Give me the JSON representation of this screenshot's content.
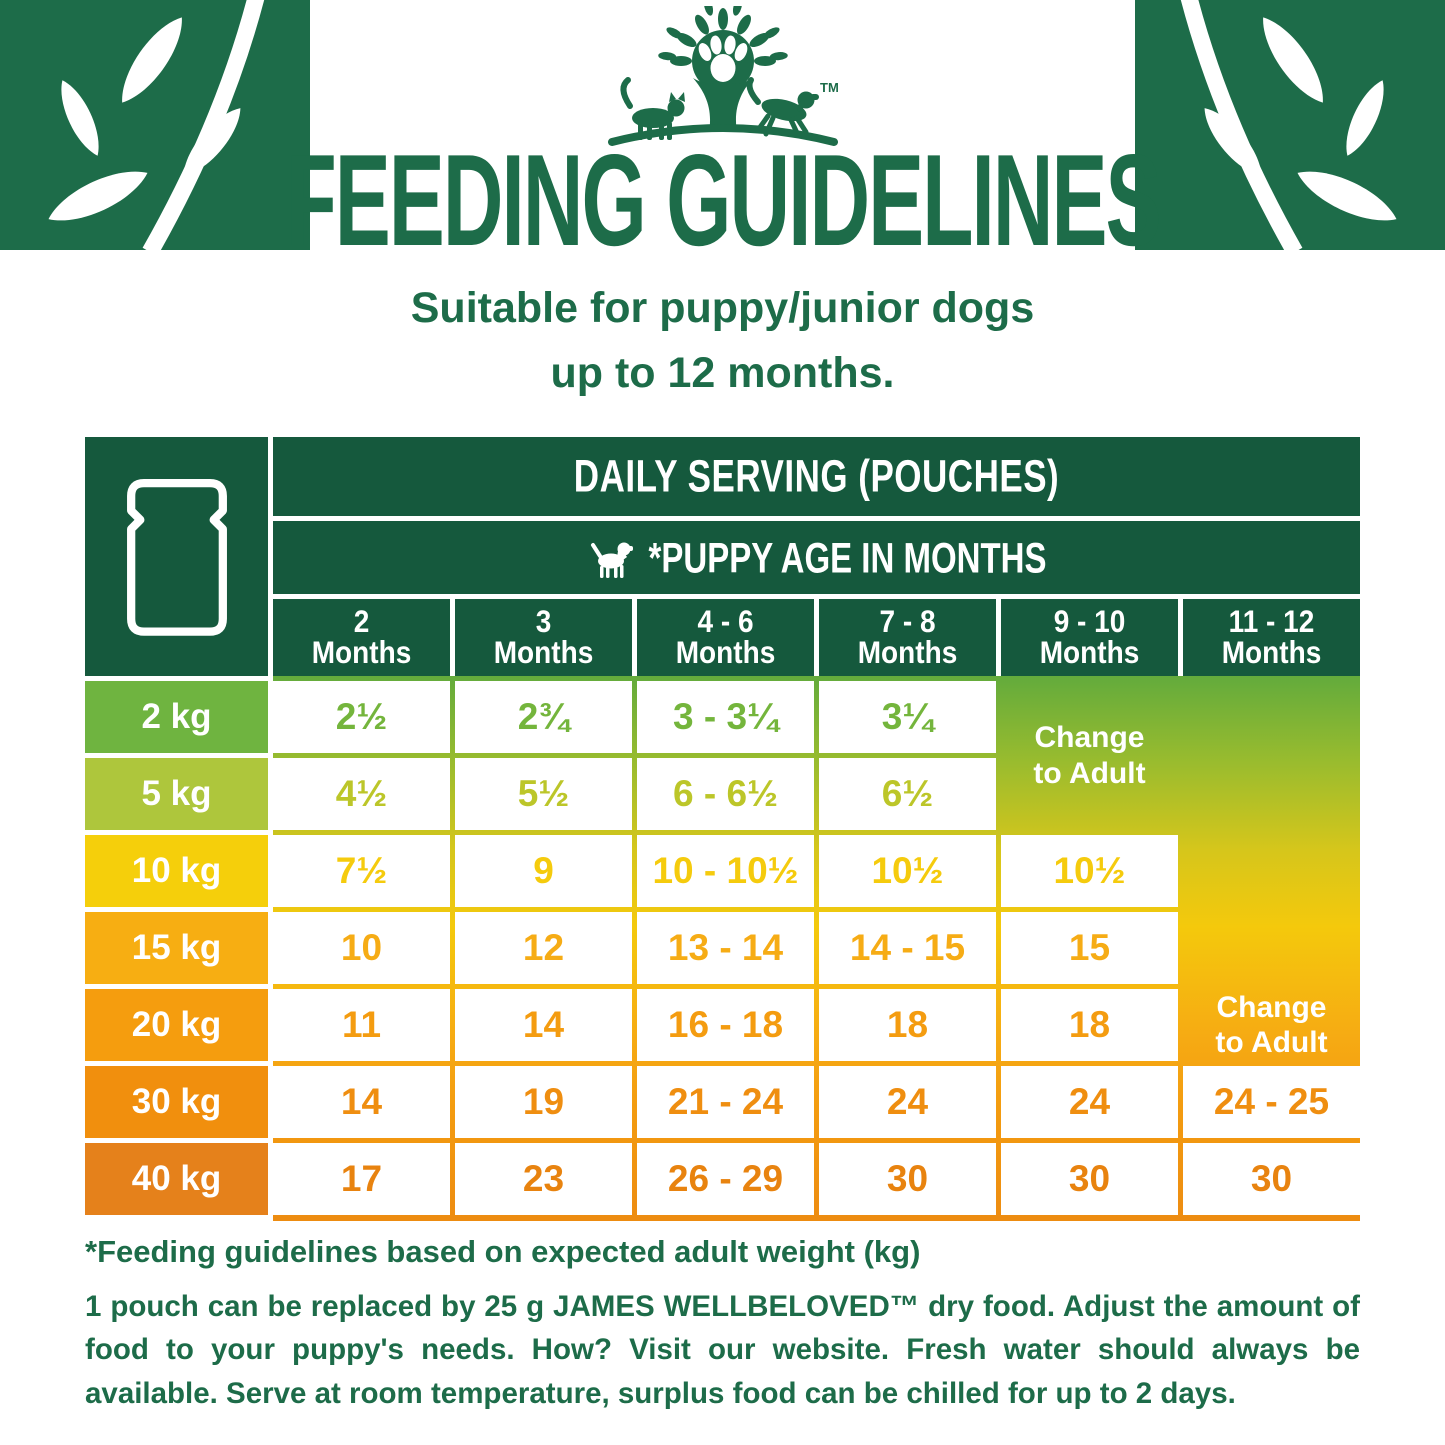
{
  "brand": {
    "trademark": "TM"
  },
  "page": {
    "title": "FEEDING GUIDELINES",
    "subtitle_line1": "Suitable for puppy/junior dogs",
    "subtitle_line2": "up to 12 months.",
    "colors": {
      "brand_green": "#1d6c49",
      "table_header_green": "#15593d",
      "gradient_top": "#63ab3c",
      "gradient_middle": "#f4c90c",
      "gradient_bottom": "#ed8c11"
    }
  },
  "table": {
    "daily_serving_header": "DAILY SERVING (POUCHES)",
    "puppy_age_header": "*PUPPY AGE IN MONTHS",
    "columns": [
      {
        "range": "2",
        "unit": "Months"
      },
      {
        "range": "3",
        "unit": "Months"
      },
      {
        "range": "4 - 6",
        "unit": "Months"
      },
      {
        "range": "7 - 8",
        "unit": "Months"
      },
      {
        "range": "9 - 10",
        "unit": "Months"
      },
      {
        "range": "11 - 12",
        "unit": "Months"
      }
    ],
    "rows": [
      {
        "weight": "2 kg",
        "cell_color": "#6fb440",
        "value_color": "#74b53c",
        "values": [
          "2½",
          "2¾",
          "3 - 3¼",
          "3¼",
          null,
          null
        ]
      },
      {
        "weight": "5 kg",
        "cell_color": "#aec63c",
        "value_color": "#bcc629",
        "values": [
          "4½",
          "5½",
          "6 - 6½",
          "6½",
          null,
          null
        ]
      },
      {
        "weight": "10 kg",
        "cell_color": "#f5cf0b",
        "value_color": "#f5cb0d",
        "values": [
          "7½",
          "9",
          "10 - 10½",
          "10½",
          "10½",
          null
        ]
      },
      {
        "weight": "15 kg",
        "cell_color": "#f7ae12",
        "value_color": "#f6ac15",
        "values": [
          "10",
          "12",
          "13 - 14",
          "14 - 15",
          "15",
          null
        ]
      },
      {
        "weight": "20 kg",
        "cell_color": "#f59d0e",
        "value_color": "#f49c10",
        "values": [
          "11",
          "14",
          "16 - 18",
          "18",
          "18",
          null
        ]
      },
      {
        "weight": "30 kg",
        "cell_color": "#f18f0d",
        "value_color": "#ef8e10",
        "values": [
          "14",
          "19",
          "21 - 24",
          "24",
          "24",
          "24 - 25"
        ]
      },
      {
        "weight": "40 kg",
        "cell_color": "#e5811b",
        "value_color": "#e8830f",
        "values": [
          "17",
          "23",
          "26 - 29",
          "30",
          "30",
          "30"
        ]
      }
    ],
    "change_to_adult": {
      "line1": "Change",
      "line2": "to Adult"
    }
  },
  "footer": {
    "note": "*Feeding guidelines based on expected adult weight (kg)",
    "paragraph": "1 pouch can be replaced by 25 g JAMES WELLBELOVED™ dry food. Adjust the amount of food to your puppy's needs. How? Visit our website. Fresh water should always be available. Serve at room temperature, surplus food can be chilled for up to 2 days."
  }
}
